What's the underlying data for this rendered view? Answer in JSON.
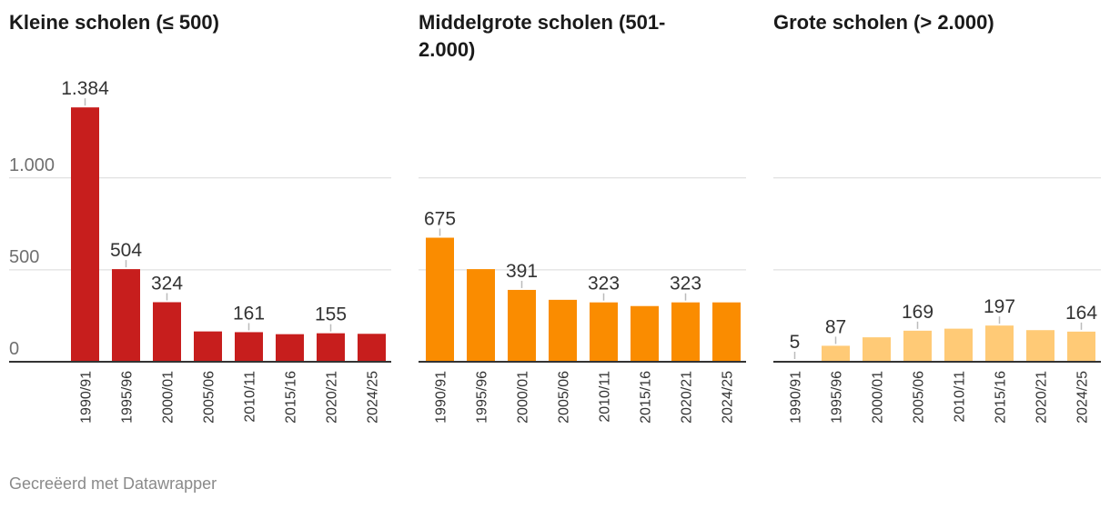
{
  "chart_data": [
    {
      "type": "bar",
      "title": "Kleine scholen (≤ 500)",
      "title_lines": [
        "Kleine scholen (≤ 500)"
      ],
      "categories": [
        "1990/91",
        "1995/96",
        "2000/01",
        "2005/06",
        "2010/11",
        "2015/16",
        "2020/21",
        "2024/25"
      ],
      "values": [
        1384,
        504,
        324,
        165,
        161,
        150,
        155,
        152
      ],
      "data_labels": [
        "1.384",
        "504",
        "324",
        "",
        "161",
        "",
        "155",
        ""
      ],
      "yticks": [
        0,
        500,
        1000
      ],
      "ytick_labels": [
        "0",
        "500",
        "1.000"
      ],
      "ylim": [
        0,
        1500
      ],
      "color": "#c71e1d"
    },
    {
      "type": "bar",
      "title": "Middelgrote scholen (501-2.000)",
      "title_lines": [
        "Middelgrote scholen (501-",
        "2.000)"
      ],
      "categories": [
        "1990/91",
        "1995/96",
        "2000/01",
        "2005/06",
        "2010/11",
        "2015/16",
        "2020/21",
        "2024/25"
      ],
      "values": [
        675,
        504,
        391,
        337,
        323,
        303,
        323,
        323
      ],
      "data_labels": [
        "675",
        "",
        "391",
        "",
        "323",
        "",
        "323",
        ""
      ],
      "yticks": [
        0,
        500,
        1000
      ],
      "ytick_labels": [
        "",
        "",
        ""
      ],
      "ylim": [
        0,
        1500
      ],
      "color": "#fa8c00"
    },
    {
      "type": "bar",
      "title": "Grote scholen (> 2.000)",
      "title_lines": [
        "Grote scholen (> 2.000)"
      ],
      "categories": [
        "1990/91",
        "1995/96",
        "2000/01",
        "2005/06",
        "2010/11",
        "2015/16",
        "2020/21",
        "2024/25"
      ],
      "values": [
        5,
        87,
        133,
        169,
        180,
        197,
        172,
        164
      ],
      "data_labels": [
        "5",
        "87",
        "",
        "169",
        "",
        "197",
        "",
        "164"
      ],
      "yticks": [
        0,
        500,
        1000
      ],
      "ytick_labels": [
        "",
        "",
        ""
      ],
      "ylim": [
        0,
        1500
      ],
      "color": "#ffca76"
    }
  ],
  "footer": "Gecreëerd met Datawrapper"
}
